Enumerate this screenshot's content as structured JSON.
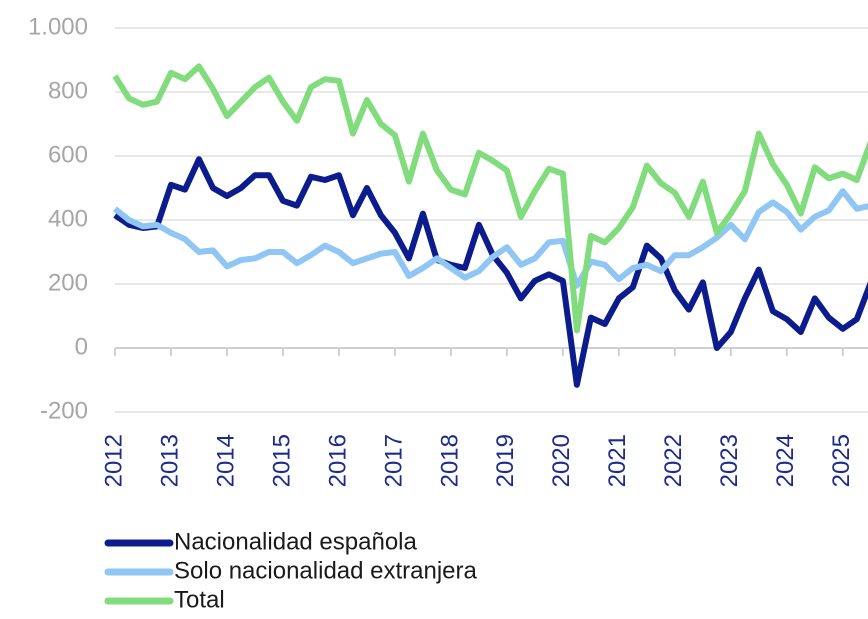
{
  "chart_data": {
    "type": "line",
    "x": [
      2012,
      2012.25,
      2012.5,
      2012.75,
      2013,
      2013.25,
      2013.5,
      2013.75,
      2014,
      2014.25,
      2014.5,
      2014.75,
      2015,
      2015.25,
      2015.5,
      2015.75,
      2016,
      2016.25,
      2016.5,
      2016.75,
      2017,
      2017.25,
      2017.5,
      2017.75,
      2018,
      2018.25,
      2018.5,
      2018.75,
      2019,
      2019.25,
      2019.5,
      2019.75,
      2020,
      2020.25,
      2020.5,
      2020.75,
      2021,
      2021.25,
      2021.5,
      2021.75,
      2022,
      2022.25,
      2022.5,
      2022.75,
      2023,
      2023.25,
      2023.5,
      2023.75,
      2024,
      2024.25,
      2024.5,
      2024.75,
      2025,
      2025.25,
      2025.5
    ],
    "series": [
      {
        "name": "Nacionalidad española",
        "color": "#0c1c8c",
        "values": [
          415,
          385,
          375,
          380,
          510,
          495,
          590,
          500,
          475,
          500,
          540,
          540,
          460,
          445,
          535,
          525,
          540,
          415,
          500,
          415,
          360,
          280,
          420,
          275,
          260,
          250,
          385,
          290,
          235,
          155,
          210,
          230,
          210,
          -115,
          95,
          75,
          155,
          190,
          320,
          280,
          180,
          120,
          205,
          0,
          50,
          155,
          245,
          115,
          90,
          50,
          155,
          95,
          60,
          90,
          205
        ]
      },
      {
        "name": "Solo nacionalidad extranjera",
        "color": "#8fc6f4",
        "values": [
          435,
          400,
          380,
          385,
          360,
          340,
          300,
          305,
          255,
          275,
          280,
          300,
          300,
          265,
          290,
          320,
          300,
          265,
          280,
          295,
          300,
          225,
          250,
          280,
          250,
          220,
          240,
          285,
          315,
          260,
          280,
          330,
          335,
          195,
          270,
          260,
          215,
          250,
          260,
          240,
          290,
          290,
          315,
          345,
          385,
          340,
          425,
          455,
          425,
          370,
          410,
          430,
          490,
          435,
          445
        ]
      },
      {
        "name": "Total",
        "color": "#80dc7c",
        "values": [
          850,
          780,
          760,
          770,
          860,
          840,
          880,
          810,
          725,
          770,
          815,
          845,
          770,
          710,
          815,
          840,
          835,
          670,
          775,
          700,
          665,
          520,
          670,
          555,
          495,
          480,
          610,
          585,
          555,
          410,
          490,
          560,
          545,
          55,
          350,
          330,
          375,
          440,
          570,
          515,
          485,
          410,
          520,
          360,
          420,
          490,
          670,
          575,
          510,
          420,
          565,
          530,
          545,
          525,
          645
        ]
      }
    ],
    "xlim": [
      2012,
      2025.45
    ],
    "xticks": [
      2012,
      2013,
      2014,
      2015,
      2016,
      2017,
      2018,
      2019,
      2020,
      2021,
      2022,
      2023,
      2024,
      2025
    ],
    "ylim": [
      -200,
      1000
    ],
    "yticks": [
      -200,
      0,
      200,
      400,
      600,
      800,
      {
        "value": 1000,
        "label": "1.000"
      }
    ],
    "grid": true
  }
}
